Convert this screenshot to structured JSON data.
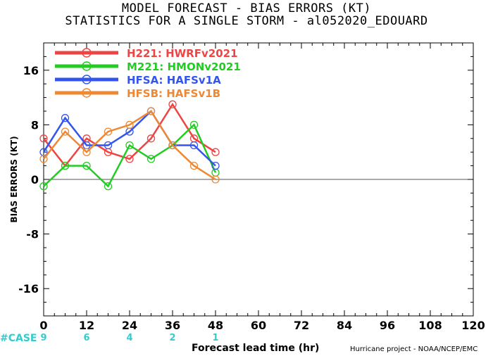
{
  "header": {
    "title_line1": "MODEL FORECAST - BIAS ERRORS (KT)",
    "title_line2": "STATISTICS FOR A SINGLE STORM - al052020_EDOUARD"
  },
  "footer": {
    "xlabel": "Forecast lead time (hr)",
    "credit": "Hurricane project - NOAA/NCEP/EMC",
    "case_label": "#CASE"
  },
  "chart_data": {
    "type": "line",
    "ylabel": "BIAS ERRORS (KT)",
    "xlabel": "Forecast lead time (hr)",
    "xlim": [
      0,
      120
    ],
    "ylim": [
      -20,
      20
    ],
    "xticks": [
      0,
      12,
      24,
      36,
      48,
      60,
      72,
      84,
      96,
      108,
      120
    ],
    "yticks": [
      -16,
      -8,
      0,
      8,
      16
    ],
    "grid": false,
    "legend_position": "top-left",
    "case_counts": [
      {
        "x": 0,
        "n": "9"
      },
      {
        "x": 12,
        "n": "6"
      },
      {
        "x": 24,
        "n": "4"
      },
      {
        "x": 36,
        "n": "2"
      },
      {
        "x": 48,
        "n": "1"
      }
    ],
    "series": [
      {
        "name": "H221: HWRFv2021",
        "color": "#ee4444",
        "x": [
          0,
          6,
          12,
          18,
          24,
          30,
          36,
          42,
          48
        ],
        "y": [
          6,
          2,
          6,
          4,
          3,
          6,
          11,
          6,
          4
        ]
      },
      {
        "name": "M221: HMONv2021",
        "color": "#22cc22",
        "x": [
          0,
          6,
          12,
          18,
          24,
          30,
          36,
          42,
          48
        ],
        "y": [
          -1,
          2,
          2,
          -1,
          5,
          3,
          5,
          8,
          1
        ]
      },
      {
        "name": "HFSA: HAFSv1A",
        "color": "#3355ee",
        "x": [
          0,
          6,
          12,
          18,
          24,
          30,
          36,
          42,
          48
        ],
        "y": [
          4,
          9,
          5,
          5,
          7,
          10,
          5,
          5,
          2
        ]
      },
      {
        "name": "HFSB: HAFSv1B",
        "color": "#ee8833",
        "x": [
          0,
          6,
          12,
          18,
          24,
          30,
          36,
          42,
          48
        ],
        "y": [
          3,
          7,
          4,
          7,
          8,
          10,
          5,
          2,
          0
        ]
      }
    ]
  }
}
